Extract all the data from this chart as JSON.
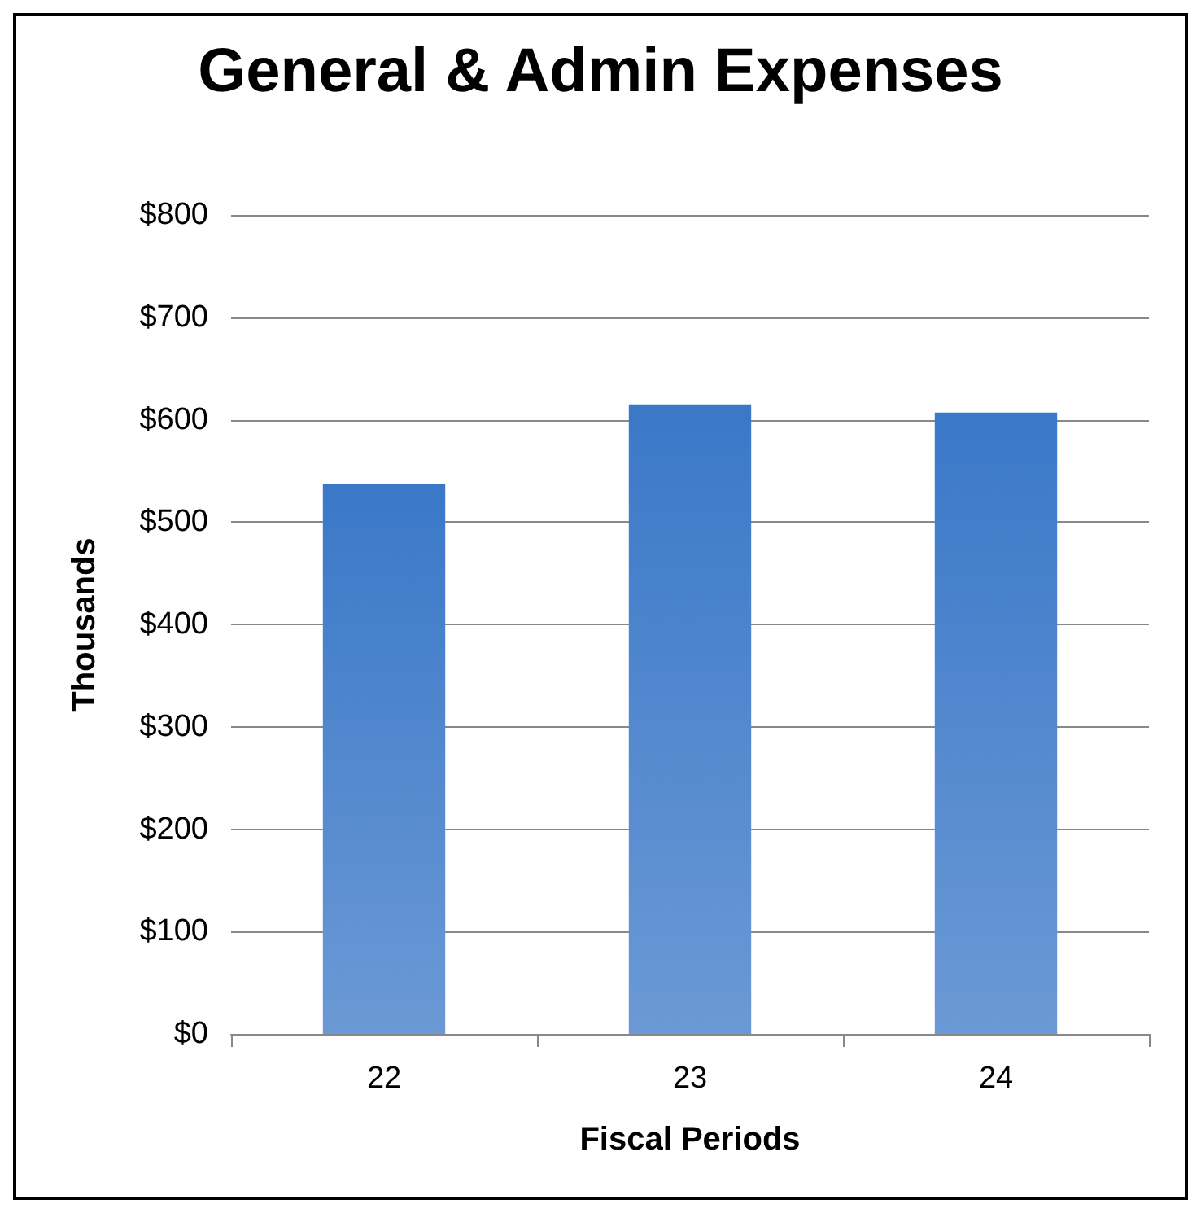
{
  "chart_data": {
    "type": "bar",
    "title": "General & Admin Expenses",
    "xlabel": "Fiscal Periods",
    "ylabel": "Thousands",
    "categories": [
      "22",
      "23",
      "24"
    ],
    "values": [
      537,
      615,
      607
    ],
    "color": "#3a78c8",
    "ylim": [
      0,
      800
    ],
    "yticks": [
      {
        "value": 0,
        "label": "$0"
      },
      {
        "value": 100,
        "label": "$100"
      },
      {
        "value": 200,
        "label": "$200"
      },
      {
        "value": 300,
        "label": "$300"
      },
      {
        "value": 400,
        "label": "$400"
      },
      {
        "value": 500,
        "label": "$500"
      },
      {
        "value": 600,
        "label": "$600"
      },
      {
        "value": 700,
        "label": "$700"
      },
      {
        "value": 800,
        "label": "$800"
      }
    ],
    "grid": "y"
  }
}
